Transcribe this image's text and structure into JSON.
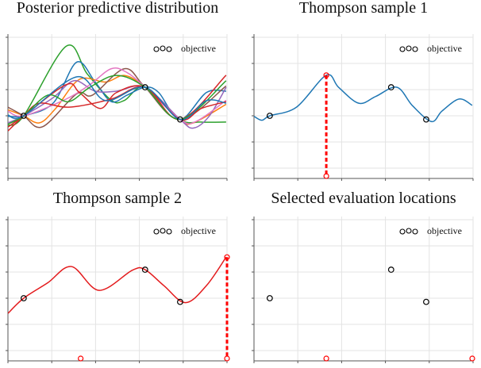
{
  "chart_data": [
    {
      "type": "line",
      "title": "Posterior predictive distribution",
      "xlim": [
        0,
        5
      ],
      "ylim": [
        -2.4,
        3.1
      ],
      "grid": true,
      "legend_placement": "top-right",
      "legend": [
        "objective"
      ],
      "observations": {
        "name": "objective",
        "x": [
          0.36,
          3.13,
          3.93
        ],
        "y": [
          0.0,
          1.09,
          -0.14
        ]
      },
      "samples": [
        {
          "color": "#2ca02c",
          "x": [
            0,
            0.36,
            1.33,
            1.81,
            2.36,
            2.66,
            3.13,
            3.93,
            4.41,
            4.98
          ],
          "y": [
            -0.37,
            0,
            2.66,
            1.6,
            0.59,
            0.59,
            1.09,
            -0.14,
            -0.24,
            -0.24
          ]
        },
        {
          "color": "#1f77b4",
          "x": [
            0,
            0.36,
            1.03,
            1.57,
            1.99,
            2.36,
            2.72,
            3.13,
            3.44,
            3.93,
            4.53,
            4.98
          ],
          "y": [
            -0.02,
            0,
            0.48,
            2.05,
            1.29,
            0.54,
            0.79,
            1.09,
            0.89,
            -0.14,
            0.89,
            0.94
          ]
        },
        {
          "color": "#ff7f0e",
          "x": [
            0,
            0.36,
            0.72,
            1.09,
            1.63,
            2.23,
            2.66,
            3.13,
            3.93,
            4.23,
            4.98
          ],
          "y": [
            0.23,
            0,
            -0.27,
            0.28,
            1.39,
            1.29,
            1.54,
            1.09,
            -0.14,
            -0.27,
            0.44
          ]
        },
        {
          "color": "#8c564b",
          "x": [
            0,
            0.36,
            0.79,
            1.57,
            1.93,
            2.66,
            3.13,
            3.93,
            4.98
          ],
          "y": [
            0.33,
            0,
            -0.42,
            0.84,
            0.79,
            1.8,
            1.09,
            -0.14,
            1.14
          ]
        },
        {
          "color": "#9467bd",
          "x": [
            0,
            0.36,
            1.03,
            1.51,
            1.99,
            2.48,
            3.13,
            3.93,
            4.23,
            4.59,
            4.98
          ],
          "y": [
            -0.27,
            0,
            0.69,
            1.34,
            0.94,
            0.94,
            1.09,
            -0.14,
            -0.47,
            -0.02,
            1.09
          ]
        },
        {
          "color": "#e377c2",
          "x": [
            0,
            0.36,
            1.33,
            1.87,
            2.36,
            2.72,
            3.13,
            3.93,
            4.29,
            4.98
          ],
          "y": [
            0.18,
            0,
            0.64,
            1.19,
            1.8,
            1.65,
            1.09,
            -0.14,
            -0.22,
            0.59
          ]
        },
        {
          "color": "#d62728",
          "x": [
            0,
            0.36,
            0.72,
            1.39,
            2.36,
            3.13,
            3.93,
            4.98
          ],
          "y": [
            -0.58,
            0,
            0.48,
            0.33,
            0.64,
            1.09,
            -0.14,
            1.55
          ]
        },
        {
          "color": "#d62728",
          "x": [
            0,
            0.36,
            1.33,
            1.63,
            2.11,
            2.48,
            3.13,
            3.93,
            4.41,
            4.98
          ],
          "y": [
            -0.43,
            0,
            1.19,
            0.89,
            0.28,
            0.89,
            1.09,
            -0.14,
            0.28,
            0.54
          ]
        },
        {
          "color": "#2ca02c",
          "x": [
            0,
            0.36,
            0.91,
            1.39,
            1.87,
            2.48,
            3.13,
            3.93,
            4.98
          ],
          "y": [
            -0.32,
            0,
            0.79,
            0.54,
            1.09,
            1.54,
            1.09,
            -0.14,
            1.34
          ]
        },
        {
          "color": "#1f77b4",
          "x": [
            0,
            0.36,
            1.57,
            2.23,
            3.13,
            3.93,
            4.53,
            4.98
          ],
          "y": [
            0.03,
            0,
            1.49,
            0.58,
            1.09,
            -0.14,
            0.58,
            0.48
          ]
        }
      ]
    },
    {
      "type": "line",
      "title": "Thompson sample 1",
      "xlim": [
        0,
        5
      ],
      "ylim": [
        -2.4,
        3.1
      ],
      "grid": true,
      "legend_placement": "top-right",
      "legend": [
        "objective"
      ],
      "observations": {
        "name": "objective",
        "x": [
          0.36,
          3.13,
          3.93
        ],
        "y": [
          0.0,
          1.09,
          -0.14
        ]
      },
      "sample": {
        "color": "#1f77b4",
        "x": [
          0,
          0.18,
          0.36,
          0.97,
          1.65,
          1.93,
          2.39,
          2.78,
          3.26,
          3.62,
          4.05,
          4.29,
          4.68,
          4.98
        ],
        "y": [
          -0.02,
          -0.17,
          0,
          0.33,
          1.55,
          1.09,
          0.48,
          0.74,
          1.09,
          0.38,
          -0.22,
          0.18,
          0.64,
          0.4
        ]
      },
      "selected": {
        "x": 1.65,
        "y": 1.55,
        "color": "#ff0000"
      }
    },
    {
      "type": "line",
      "title": "Thompson sample 2",
      "xlim": [
        0,
        5
      ],
      "ylim": [
        -2.4,
        3.1
      ],
      "grid": true,
      "legend_placement": "top-right",
      "legend": [
        "objective"
      ],
      "observations": {
        "name": "objective",
        "x": [
          0.36,
          3.13,
          3.93
        ],
        "y": [
          0.0,
          1.09,
          -0.14
        ]
      },
      "sample": {
        "color": "#e31a1c",
        "x": [
          0,
          0.36,
          0.91,
          1.45,
          2.08,
          2.84,
          3.13,
          3.56,
          4.05,
          4.53,
          4.98
        ],
        "y": [
          -0.58,
          0,
          0.59,
          1.21,
          0.3,
          1.07,
          1.09,
          0.48,
          -0.17,
          0.48,
          1.57
        ]
      },
      "selected": {
        "x": 5.0,
        "y": 1.57,
        "color": "#ff0000"
      },
      "previous_selected_x": [
        1.66
      ]
    },
    {
      "type": "scatter",
      "title": "Selected evaluation locations",
      "xlim": [
        0,
        5
      ],
      "ylim": [
        -2.4,
        3.1
      ],
      "grid": true,
      "legend_placement": "top-right",
      "legend": [
        "objective"
      ],
      "observations": {
        "name": "objective",
        "x": [
          0.36,
          3.13,
          3.93
        ],
        "y": [
          0.0,
          1.09,
          -0.14
        ]
      },
      "selected_x": [
        1.65,
        5.0
      ],
      "selected_color": "#ff0000"
    }
  ]
}
